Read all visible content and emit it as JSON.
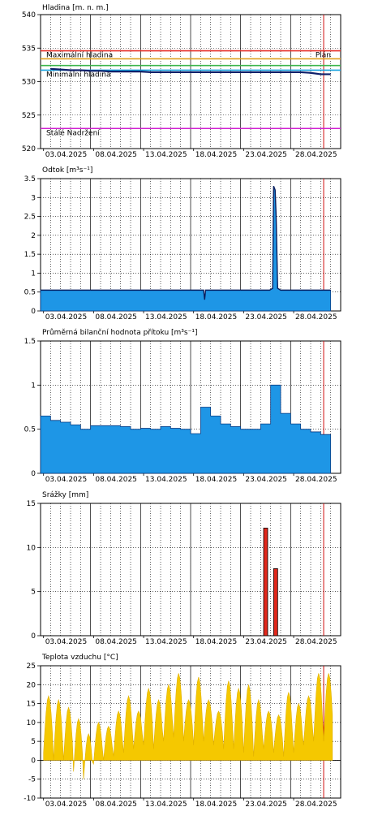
{
  "chart_data": [
    {
      "type": "line",
      "title": "Hladina [m. n. m.]",
      "ylim": [
        520,
        540
      ],
      "yticks": [
        520,
        525,
        530,
        535,
        540
      ],
      "x_tick_labels": [
        "03.04.2025",
        "08.04.2025",
        "13.04.2025",
        "18.04.2025",
        "23.04.2025",
        "28.04.2025"
      ],
      "reference_lines": [
        {
          "label": "Maximální hladina",
          "value": 534.6,
          "color": "#e8312a"
        },
        {
          "label": "",
          "value": 533.4,
          "color": "#e0a020"
        },
        {
          "label": "",
          "value": 532.4,
          "color": "#3bb54a"
        },
        {
          "label": "Minimální hladina",
          "value": 531.7,
          "color": "#1aa3e0"
        },
        {
          "label": "Stálé Nadržení",
          "value": 523.0,
          "color": "#d020d0"
        }
      ],
      "right_label": "Plán",
      "series": [
        {
          "name": "",
          "color": "#10206a",
          "x": [
            1,
            2,
            3,
            4,
            5,
            6,
            7,
            8,
            9,
            10,
            11,
            12,
            13,
            14,
            15,
            16,
            17,
            18,
            19,
            20,
            21,
            22,
            23,
            24,
            25,
            26,
            27,
            28,
            29
          ],
          "y": [
            531.9,
            531.8,
            531.7,
            531.7,
            531.6,
            531.6,
            531.5,
            531.5,
            531.5,
            531.5,
            531.4,
            531.4,
            531.4,
            531.4,
            531.4,
            531.4,
            531.4,
            531.4,
            531.4,
            531.4,
            531.4,
            531.4,
            531.4,
            531.4,
            531.4,
            531.4,
            531.3,
            531.1,
            531.1
          ]
        }
      ]
    },
    {
      "type": "area",
      "title": "Odtok [m³s⁻¹]",
      "ylim": [
        0,
        3.5
      ],
      "yticks": [
        0,
        0.5,
        1,
        1.5,
        2,
        2.5,
        3,
        3.5
      ],
      "x_tick_labels": [
        "03.04.2025",
        "08.04.2025",
        "13.04.2025",
        "18.04.2025",
        "23.04.2025",
        "28.04.2025"
      ],
      "series": [
        {
          "name": "",
          "color": "#1e96e6",
          "x": [
            0,
            16.3,
            16.4,
            16.5,
            22.9,
            23.2,
            23.3,
            23.45,
            23.55,
            23.7,
            24.0,
            29
          ],
          "y": [
            0.55,
            0.55,
            0.3,
            0.55,
            0.55,
            0.6,
            3.3,
            3.2,
            2.5,
            0.6,
            0.55,
            0.55
          ]
        }
      ]
    },
    {
      "type": "area",
      "title": "Průměrná bilanční hodnota přítoku   [m³s⁻¹]",
      "ylim": [
        0,
        1.5
      ],
      "yticks": [
        0,
        0.5,
        1,
        1.5
      ],
      "x_tick_labels": [
        "03.04.2025",
        "08.04.2025",
        "13.04.2025",
        "18.04.2025",
        "23.04.2025",
        "28.04.2025"
      ],
      "series": [
        {
          "name": "",
          "color": "#1e96e6",
          "values": [
            0.65,
            0.6,
            0.58,
            0.55,
            0.5,
            0.54,
            0.54,
            0.54,
            0.53,
            0.5,
            0.51,
            0.5,
            0.53,
            0.51,
            0.5,
            0.45,
            0.75,
            0.65,
            0.56,
            0.53,
            0.5,
            0.5,
            0.56,
            1.0,
            0.68,
            0.56,
            0.5,
            0.47,
            0.44
          ]
        }
      ]
    },
    {
      "type": "bar",
      "title": "Srážky [mm]",
      "ylim": [
        0,
        15
      ],
      "yticks": [
        0,
        5,
        10,
        15
      ],
      "x_tick_labels": [
        "03.04.2025",
        "08.04.2025",
        "13.04.2025",
        "18.04.2025",
        "23.04.2025",
        "28.04.2025"
      ],
      "series": [
        {
          "name": "",
          "color": "#e0281c",
          "x": [
            22.5,
            23.5
          ],
          "values": [
            12.2,
            7.6
          ]
        }
      ]
    },
    {
      "type": "area",
      "title": "Teplota vzduchu [°C]",
      "ylim": [
        -10,
        25
      ],
      "yticks": [
        -10,
        -5,
        0,
        5,
        10,
        15,
        20,
        25
      ],
      "x_tick_labels": [
        "03.04.2025",
        "08.04.2025",
        "13.04.2025",
        "18.04.2025",
        "23.04.2025",
        "28.04.2025"
      ],
      "series": [
        {
          "name": "",
          "color": "#f5c800",
          "daily_min": [
            2,
            0,
            0,
            -3,
            -5,
            -1,
            0,
            1,
            2,
            3,
            4,
            3,
            5,
            6,
            5,
            4,
            5,
            4,
            3,
            3,
            2,
            1,
            3,
            2,
            1,
            2,
            4,
            5,
            5
          ],
          "daily_max": [
            17,
            16,
            14,
            11,
            7,
            10,
            9,
            13,
            17,
            13,
            19,
            16,
            20,
            23,
            16,
            22,
            16,
            13,
            21,
            19,
            20,
            16,
            13,
            12,
            18,
            15,
            17,
            23,
            23
          ]
        }
      ]
    }
  ]
}
